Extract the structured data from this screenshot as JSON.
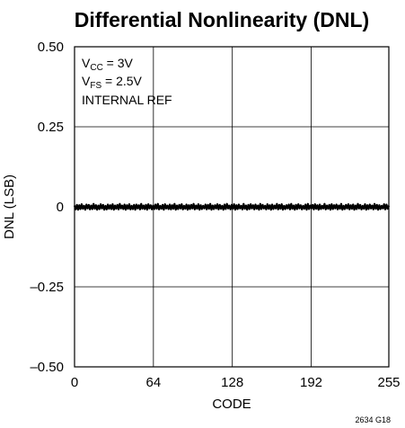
{
  "chart_data": {
    "type": "line",
    "title": "Differential Nonlinearity (DNL)",
    "xlabel": "CODE",
    "ylabel": "DNL (LSB)",
    "xlim": [
      0,
      255
    ],
    "ylim": [
      -0.5,
      0.5
    ],
    "x_ticks": [
      0,
      64,
      128,
      192,
      255
    ],
    "x_tick_labels": [
      "0",
      "64",
      "128",
      "192",
      "255"
    ],
    "y_ticks": [
      0.5,
      0.25,
      0,
      -0.25,
      -0.5
    ],
    "y_tick_labels": [
      "0.50",
      "0.25",
      "0",
      "–0.25",
      "–0.50"
    ],
    "grid": true,
    "annotations": {
      "vcc": {
        "main": "V",
        "sub": "CC",
        "rest": " = 3V"
      },
      "vfs": {
        "main": "V",
        "sub": "FS",
        "rest": " = 2.5V"
      },
      "ref": "INTERNAL REF"
    },
    "series": [
      {
        "x_start": 0,
        "x_end": 255,
        "values": [
          0.004,
          -0.008,
          0.006,
          -0.009,
          0.005,
          -0.007,
          0.008,
          -0.006,
          0.003,
          -0.009,
          0.007,
          -0.005,
          0.006,
          -0.008,
          0.004,
          -0.007,
          0.009,
          -0.006,
          0.005,
          -0.009,
          0.004,
          -0.007,
          0.008,
          -0.005,
          0.006,
          -0.009,
          0.003,
          -0.008,
          0.007,
          -0.006,
          0.005,
          -0.007,
          0.008,
          -0.009,
          0.004,
          -0.006,
          0.006,
          -0.008,
          0.009,
          -0.005,
          0.004,
          -0.007,
          0.007,
          -0.009,
          0.005,
          -0.006,
          0.008,
          -0.008,
          0.003,
          -0.007,
          0.006,
          -0.009,
          0.007,
          -0.005,
          0.005,
          -0.008,
          0.009,
          -0.006,
          0.004,
          -0.007,
          0.006,
          -0.009,
          0.008,
          -0.005,
          0.005,
          -0.008,
          0.004,
          -0.007,
          0.007,
          -0.006,
          0.009,
          -0.008,
          0.003,
          -0.006,
          0.006,
          -0.009,
          0.008,
          -0.005,
          0.004,
          -0.007,
          0.007,
          -0.008,
          0.005,
          -0.006,
          0.009,
          -0.009,
          0.004,
          -0.007,
          0.006,
          -0.005,
          0.008,
          -0.008,
          0.003,
          -0.006,
          0.007,
          -0.009,
          0.005,
          -0.007,
          0.006,
          -0.005,
          0.009,
          -0.008,
          0.004,
          -0.006,
          0.008,
          -0.009,
          0.005,
          -0.007,
          0.003,
          -0.005,
          0.007,
          -0.008,
          0.006,
          -0.006,
          0.009,
          -0.009,
          0.004,
          -0.007,
          0.005,
          -0.005,
          0.008,
          -0.008,
          0.006,
          -0.006,
          0.003,
          -0.009,
          0.007,
          -0.007,
          0.009,
          -0.005,
          0.004,
          -0.008,
          0.006,
          -0.006,
          0.008,
          -0.009,
          0.005,
          -0.007,
          0.007,
          -0.005,
          0.003,
          -0.008,
          0.009,
          -0.006,
          0.004,
          -0.009,
          0.006,
          -0.007,
          0.008,
          -0.005,
          0.005,
          -0.008,
          0.007,
          -0.006,
          0.004,
          -0.009,
          0.009,
          -0.007,
          0.006,
          -0.005,
          0.003,
          -0.008,
          0.008,
          -0.006,
          0.005,
          -0.009,
          0.007,
          -0.007,
          0.004,
          -0.005,
          0.009,
          -0.008,
          0.006,
          -0.006,
          0.008,
          -0.009,
          0.003,
          -0.007,
          0.005,
          -0.005,
          0.007,
          -0.008,
          0.009,
          -0.006,
          0.004,
          -0.009,
          0.006,
          -0.007,
          0.008,
          -0.005,
          0.005,
          -0.008,
          0.003,
          -0.006,
          0.007,
          -0.009,
          0.009,
          -0.007,
          0.004,
          -0.005,
          0.006,
          -0.008,
          0.008,
          -0.006,
          0.005,
          -0.009,
          0.007,
          -0.007,
          0.003,
          -0.005,
          0.009,
          -0.008,
          0.004,
          -0.006,
          0.006,
          -0.009,
          0.008,
          -0.007,
          0.005,
          -0.005,
          0.007,
          -0.008,
          0.004,
          -0.006,
          0.009,
          -0.009,
          0.003,
          -0.007,
          0.006,
          -0.005,
          0.008,
          -0.008,
          0.005,
          -0.006,
          0.007,
          -0.009,
          0.004,
          -0.007,
          0.009,
          -0.005,
          0.006,
          -0.008,
          0.003,
          -0.006,
          0.008,
          -0.009,
          0.005,
          -0.007,
          0.007,
          -0.005,
          0.004,
          -0.008,
          0.009,
          -0.006,
          0.006,
          -0.009,
          0.005,
          -0.007,
          0.003,
          -0.005,
          0.008,
          -0.008,
          0.007,
          -0.006,
          0.004
        ]
      }
    ]
  },
  "figure_id": "2634 G18"
}
